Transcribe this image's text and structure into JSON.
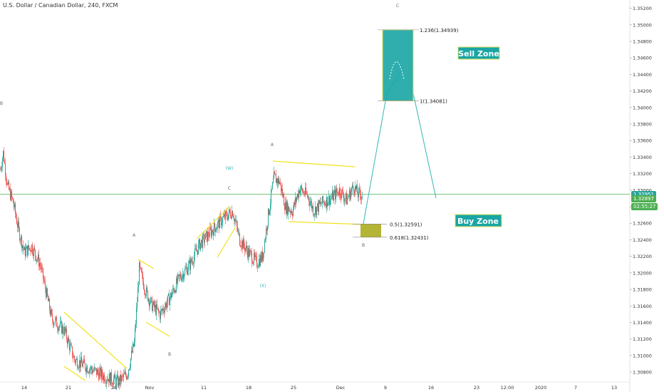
{
  "header": {
    "title": "U.S. Dollar / Canadian Dollar, 240, FXCM"
  },
  "price_axis": {
    "ticks": [
      "1.35200",
      "1.35000",
      "1.34800",
      "1.34600",
      "1.34400",
      "1.34200",
      "1.34000",
      "1.33800",
      "1.33600",
      "1.33400",
      "1.33200",
      "1.33000",
      "1.32800",
      "1.32600",
      "1.32400",
      "1.32200",
      "1.32000",
      "1.31800",
      "1.31600",
      "1.31400",
      "1.31200",
      "1.31000",
      "1.30800"
    ],
    "tick_values": [
      1.352,
      1.35,
      1.348,
      1.346,
      1.344,
      1.342,
      1.34,
      1.338,
      1.336,
      1.334,
      1.332,
      1.33,
      1.328,
      1.326,
      1.324,
      1.322,
      1.32,
      1.318,
      1.316,
      1.314,
      1.312,
      1.31,
      1.308
    ],
    "last_close_label": "1.32951",
    "current_price_label": "1.32897",
    "countdown_label": "02:55:27"
  },
  "time_axis": {
    "ticks": [
      "14",
      "21",
      "28",
      "Nov",
      "11",
      "18",
      "25",
      "Dec",
      "9",
      "16",
      "23",
      "12:00",
      "2020",
      "7",
      "13"
    ]
  },
  "annotations": {
    "sell_zone": "Sell Zone",
    "buy_zone": "Buy Zone",
    "fib_1236": "1.236(1.34939)",
    "fib_1": "1(1.34081)",
    "fib_05": "0.5(1.32591)",
    "fib_0618": "0.618(1.32431)",
    "wave_labels": [
      "B",
      "A",
      "B",
      "(W)",
      "C",
      "(X)",
      "A",
      "B",
      "C"
    ]
  },
  "colors": {
    "up_candle": "#26a69a",
    "down_candle": "#ef5350",
    "horizontal_line": "#4caf50",
    "price_badge": "#26a69a",
    "countdown_badge": "#4caf50",
    "sell_zone_fill": "#1aa5a5",
    "buy_zone_fill": "#a7a712",
    "trendline": "#f2e21b",
    "projection_line": "#35b6b6"
  },
  "chart_data": {
    "type": "candlestick",
    "title": "U.S. Dollar / Canadian Dollar, 240, FXCM",
    "ylim": [
      1.3068,
      1.353
    ],
    "horizontal_line": 1.32951,
    "current_price": 1.32897,
    "fibonacci_levels": [
      {
        "label": "1.236(1.34939)",
        "value": 1.34939
      },
      {
        "label": "1(1.34081)",
        "value": 1.34081
      },
      {
        "label": "0.5(1.32591)",
        "value": 1.32591
      },
      {
        "label": "0.618(1.32431)",
        "value": 1.32431
      }
    ],
    "price_path_anchors": [
      [
        0,
        1.3325
      ],
      [
        4,
        1.3345
      ],
      [
        10,
        1.3305
      ],
      [
        18,
        1.3285
      ],
      [
        26,
        1.325
      ],
      [
        34,
        1.3225
      ],
      [
        44,
        1.3232
      ],
      [
        56,
        1.321
      ],
      [
        72,
        1.3145
      ],
      [
        90,
        1.313
      ],
      [
        104,
        1.3095
      ],
      [
        124,
        1.3085
      ],
      [
        146,
        1.3075
      ],
      [
        166,
        1.3068
      ],
      [
        178,
        1.3078
      ],
      [
        188,
        1.3115
      ],
      [
        195,
        1.3205
      ],
      [
        204,
        1.3178
      ],
      [
        212,
        1.3162
      ],
      [
        224,
        1.315
      ],
      [
        238,
        1.317
      ],
      [
        252,
        1.3195
      ],
      [
        266,
        1.321
      ],
      [
        280,
        1.3235
      ],
      [
        296,
        1.325
      ],
      [
        312,
        1.3265
      ],
      [
        326,
        1.3275
      ],
      [
        336,
        1.324
      ],
      [
        348,
        1.3225
      ],
      [
        360,
        1.3212
      ],
      [
        368,
        1.322
      ],
      [
        376,
        1.327
      ],
      [
        384,
        1.3315
      ],
      [
        392,
        1.331
      ],
      [
        400,
        1.328
      ],
      [
        410,
        1.3275
      ],
      [
        420,
        1.3302
      ],
      [
        432,
        1.3292
      ],
      [
        440,
        1.3275
      ],
      [
        452,
        1.3285
      ],
      [
        464,
        1.329
      ],
      [
        476,
        1.33
      ],
      [
        486,
        1.3288
      ],
      [
        496,
        1.3305
      ],
      [
        502,
        1.3295
      ],
      [
        508,
        1.3295
      ]
    ]
  }
}
